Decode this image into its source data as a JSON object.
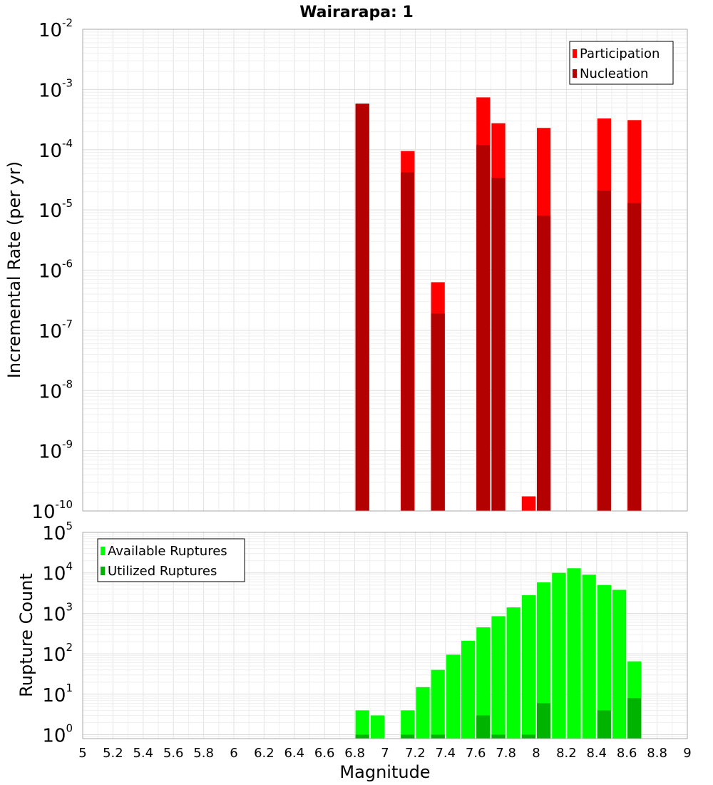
{
  "chart_data": [
    {
      "type": "bar",
      "title": "Wairarapa: 1",
      "xlabel": "",
      "ylabel": "Incremental Rate (per yr)",
      "xlim": [
        5,
        9
      ],
      "ylim": [
        1e-10,
        0.01
      ],
      "y_scale": "log",
      "grid": true,
      "legend_position": "top-right",
      "bin_width": 0.1,
      "series": [
        {
          "name": "Participation",
          "color": "#ff0000",
          "x": [
            6.85,
            7.15,
            7.35,
            7.65,
            7.75,
            7.95,
            8.05,
            8.45,
            8.65
          ],
          "values": [
            0.00058,
            9.5e-05,
            6.3e-07,
            0.00074,
            0.000275,
            1.75e-10,
            0.00023,
            0.00033,
            0.00031
          ]
        },
        {
          "name": "Nucleation",
          "color": "#b30000",
          "x": [
            6.85,
            7.15,
            7.35,
            7.65,
            7.75,
            8.05,
            8.45,
            8.65
          ],
          "values": [
            0.00058,
            4.2e-05,
            1.9e-07,
            0.00012,
            3.4e-05,
            8e-06,
            2.1e-05,
            1.3e-05
          ]
        }
      ]
    },
    {
      "type": "bar",
      "title": "",
      "xlabel": "Magnitude",
      "ylabel": "Rupture Count",
      "xlim": [
        5,
        9
      ],
      "ylim": [
        0.8,
        100000.0
      ],
      "y_scale": "log",
      "grid": true,
      "legend_position": "top-left",
      "bin_width": 0.1,
      "x_ticks": [
        "5",
        "5.2",
        "5.4",
        "5.6",
        "5.8",
        "6",
        "6.2",
        "6.4",
        "6.6",
        "6.8",
        "7",
        "7.2",
        "7.4",
        "7.6",
        "7.8",
        "8",
        "8.2",
        "8.4",
        "8.6",
        "8.8",
        "9"
      ],
      "series": [
        {
          "name": "Available Ruptures",
          "color": "#00ff00",
          "x": [
            6.85,
            6.95,
            7.15,
            7.25,
            7.35,
            7.45,
            7.55,
            7.65,
            7.75,
            7.85,
            7.95,
            8.05,
            8.15,
            8.25,
            8.35,
            8.45,
            8.55,
            8.65
          ],
          "values": [
            4,
            3,
            4,
            15,
            40,
            95,
            210,
            450,
            850,
            1400,
            2800,
            5800,
            10000,
            13000,
            9000,
            5000,
            3800,
            65
          ]
        },
        {
          "name": "Utilized Ruptures",
          "color": "#00b300",
          "x": [
            6.85,
            7.15,
            7.35,
            7.65,
            7.75,
            7.95,
            8.05,
            8.45,
            8.65
          ],
          "values": [
            1,
            1,
            1,
            3,
            1,
            1,
            6,
            4,
            8
          ]
        }
      ]
    }
  ]
}
